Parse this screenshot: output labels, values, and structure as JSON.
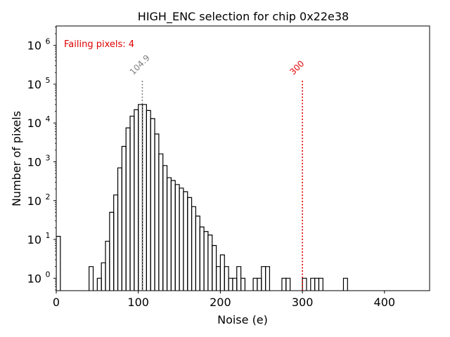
{
  "chart_data": {
    "type": "histogram",
    "title": "HIGH_ENC selection for chip 0x22e38",
    "xlabel": "Noise (e)",
    "ylabel": "Number of pixels",
    "xlim": [
      0,
      455
    ],
    "ylim_log10": [
      -0.32,
      6.5
    ],
    "yscale": "log",
    "x_ticks": [
      0,
      100,
      200,
      300,
      400
    ],
    "x_tick_labels": [
      "0",
      "100",
      "200",
      "300",
      "400"
    ],
    "y_ticks_exponent": [
      0,
      1,
      2,
      3,
      4,
      5,
      6
    ],
    "y_tick_labels": [
      "10",
      "10",
      "10",
      "10",
      "10",
      "10",
      "10"
    ],
    "y_tick_superscripts": [
      "0",
      "1",
      "2",
      "3",
      "4",
      "5",
      "6"
    ],
    "bin_width": 5,
    "bins": [
      [
        0,
        5,
        12
      ],
      [
        40,
        45,
        2
      ],
      [
        45,
        50,
        0
      ],
      [
        50,
        55,
        1
      ],
      [
        55,
        60,
        2.5
      ],
      [
        60,
        65,
        9
      ],
      [
        65,
        70,
        50
      ],
      [
        70,
        75,
        140
      ],
      [
        75,
        80,
        700
      ],
      [
        80,
        85,
        2500
      ],
      [
        85,
        90,
        7500
      ],
      [
        90,
        95,
        15000
      ],
      [
        95,
        100,
        22000
      ],
      [
        100,
        105,
        30000
      ],
      [
        105,
        110,
        30000
      ],
      [
        110,
        115,
        21000
      ],
      [
        115,
        120,
        13000
      ],
      [
        120,
        125,
        5200
      ],
      [
        125,
        130,
        1600
      ],
      [
        130,
        135,
        800
      ],
      [
        135,
        140,
        390
      ],
      [
        140,
        145,
        330
      ],
      [
        145,
        150,
        260
      ],
      [
        150,
        155,
        210
      ],
      [
        155,
        160,
        170
      ],
      [
        160,
        165,
        120
      ],
      [
        165,
        170,
        70
      ],
      [
        170,
        175,
        40
      ],
      [
        175,
        180,
        21
      ],
      [
        180,
        185,
        16
      ],
      [
        185,
        190,
        13
      ],
      [
        190,
        195,
        7
      ],
      [
        195,
        200,
        2
      ],
      [
        200,
        205,
        4
      ],
      [
        205,
        210,
        2
      ],
      [
        210,
        215,
        1
      ],
      [
        215,
        220,
        1
      ],
      [
        220,
        225,
        2
      ],
      [
        225,
        230,
        1
      ],
      [
        240,
        245,
        1
      ],
      [
        245,
        250,
        1
      ],
      [
        250,
        255,
        2
      ],
      [
        255,
        260,
        2
      ],
      [
        275,
        280,
        1
      ],
      [
        280,
        285,
        1
      ],
      [
        300,
        305,
        1
      ],
      [
        310,
        315,
        1
      ],
      [
        315,
        320,
        1
      ],
      [
        320,
        325,
        1
      ],
      [
        350,
        355,
        1
      ]
    ],
    "vlines": [
      {
        "x": 104.9,
        "label": "104.9",
        "color": "#808080",
        "top_log10": 5.1
      },
      {
        "x": 300,
        "label": "300",
        "color": "#e00000",
        "top_log10": 5.1
      }
    ],
    "annotation": {
      "text": "Failing pixels: 4",
      "color": "#e00000"
    }
  }
}
